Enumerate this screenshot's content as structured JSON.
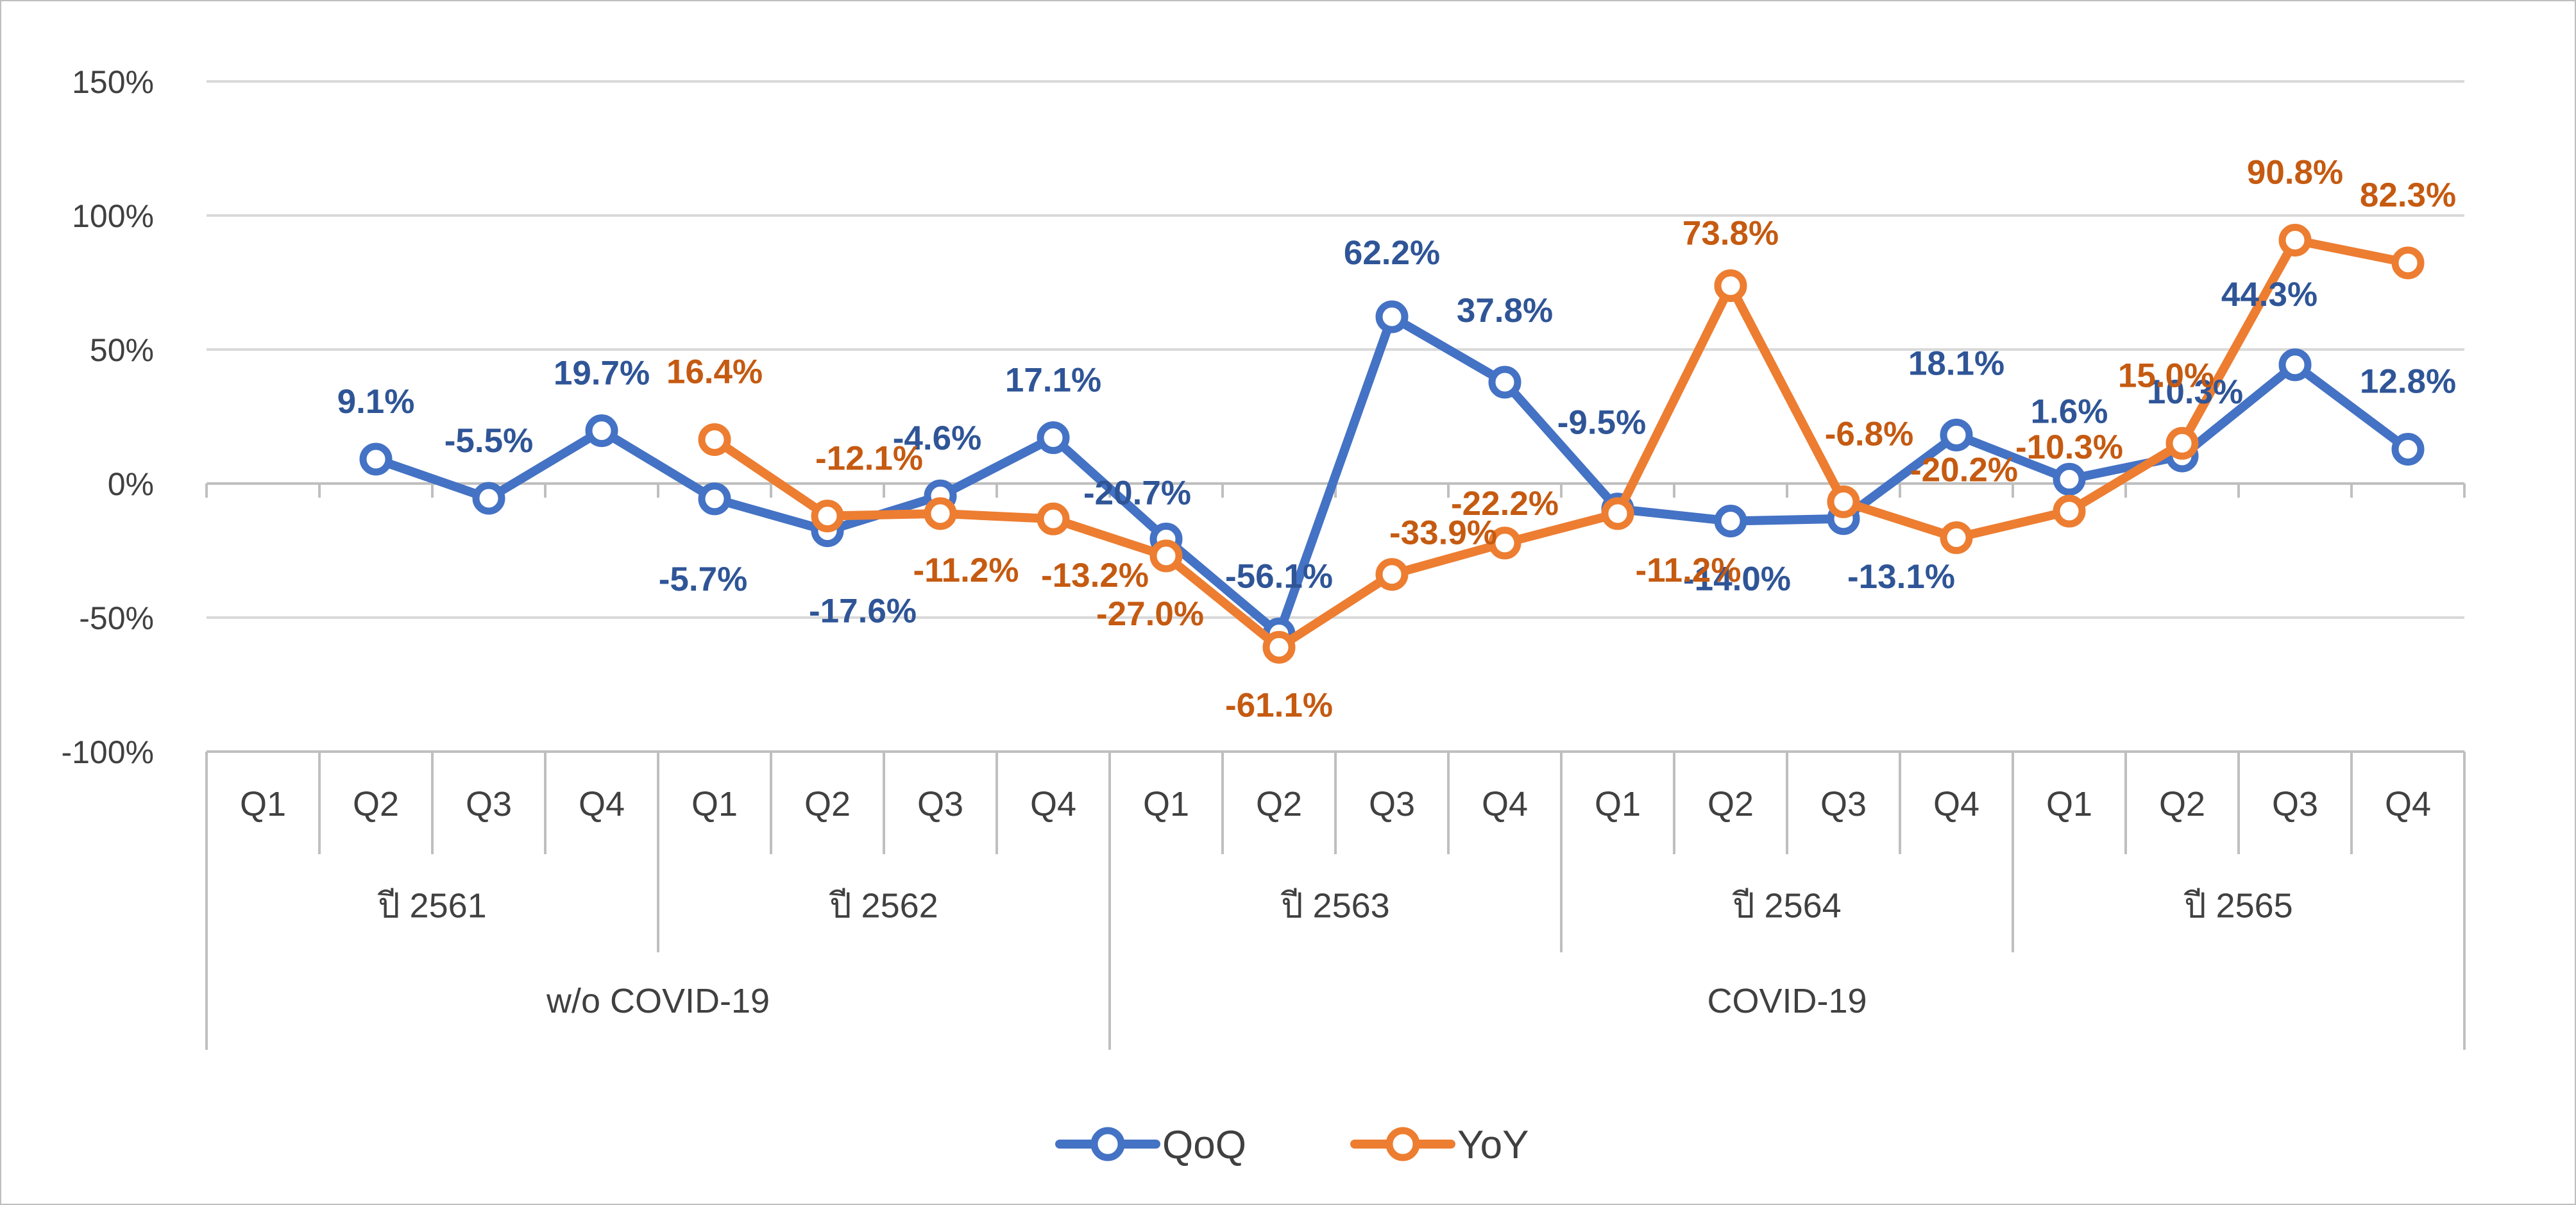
{
  "chart_data": {
    "type": "line",
    "title": "",
    "xlabel": "",
    "ylabel": "",
    "ylim": [
      -100,
      150
    ],
    "yticks": [
      150,
      100,
      50,
      0,
      -50,
      -100
    ],
    "grid": true,
    "legend_position": "bottom",
    "categories": [
      "Q1",
      "Q2",
      "Q3",
      "Q4",
      "Q1",
      "Q2",
      "Q3",
      "Q4",
      "Q1",
      "Q2",
      "Q3",
      "Q4",
      "Q1",
      "Q2",
      "Q3",
      "Q4",
      "Q1",
      "Q2",
      "Q3",
      "Q4"
    ],
    "year_groups": [
      {
        "label": "ปี 2561",
        "span": 4
      },
      {
        "label": "ปี 2562",
        "span": 4
      },
      {
        "label": "ปี 2563",
        "span": 4
      },
      {
        "label": "ปี 2564",
        "span": 4
      },
      {
        "label": "ปี 2565",
        "span": 4
      }
    ],
    "period_groups": [
      {
        "label": "w/o COVID-19",
        "span": 8
      },
      {
        "label": "COVID-19",
        "span": 12
      }
    ],
    "series": [
      {
        "name": "QoQ",
        "color": "#4472c4",
        "label_color": "#2f5597",
        "values": [
          null,
          9.1,
          -5.5,
          19.7,
          -5.7,
          -17.6,
          -4.6,
          17.1,
          -20.7,
          -56.1,
          62.2,
          37.8,
          -9.5,
          -14.0,
          -13.1,
          18.1,
          1.6,
          10.3,
          44.3,
          12.8
        ],
        "labels": [
          null,
          "9.1%",
          "-5.5%",
          "19.7%",
          "-5.7%",
          "-17.6%",
          "-4.6%",
          "17.1%",
          "-20.7%",
          "-56.1%",
          "62.2%",
          "37.8%",
          "-9.5%",
          "-14.0%",
          "-13.1%",
          "18.1%",
          "1.6%",
          "10.3%",
          "44.3%",
          "12.8%"
        ]
      },
      {
        "name": "YoY",
        "color": "#ed7d31",
        "label_color": "#c55a11",
        "values": [
          null,
          null,
          null,
          null,
          16.4,
          -12.1,
          -11.2,
          -13.2,
          -27.0,
          -61.1,
          -33.9,
          -22.2,
          -11.2,
          73.8,
          -6.8,
          -20.2,
          -10.3,
          15.0,
          90.8,
          82.3
        ],
        "labels": [
          null,
          null,
          null,
          null,
          "16.4%",
          "-12.1%",
          "-11.2%",
          "-13.2%",
          "-27.0%",
          "-61.1%",
          "-33.9%",
          "-22.2%",
          "-11.2%",
          "73.8%",
          "-6.8%",
          "-20.2%",
          "-10.3%",
          "15.0%",
          "90.8%",
          "82.3%"
        ]
      }
    ]
  }
}
